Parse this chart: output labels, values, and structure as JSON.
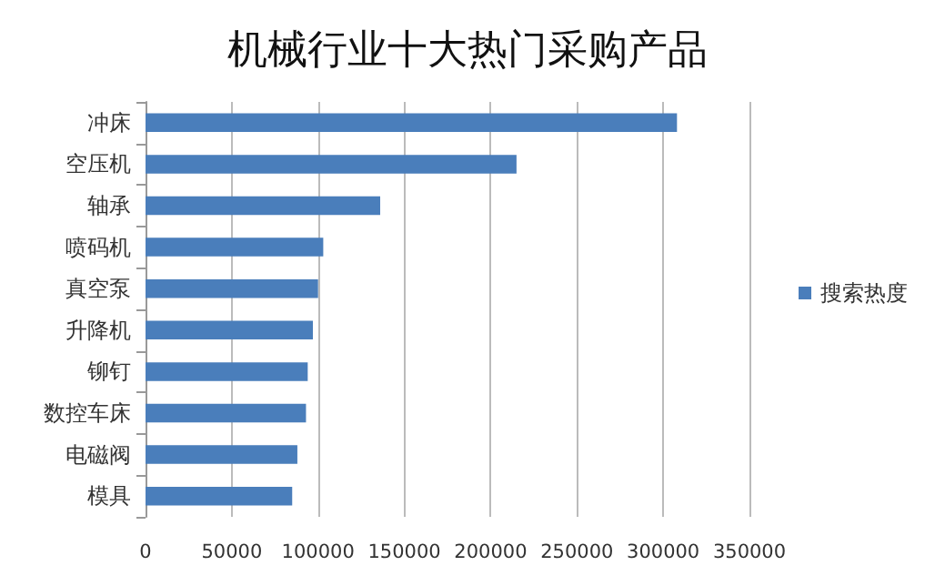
{
  "chart_data": {
    "type": "bar",
    "orientation": "horizontal",
    "title": "机械行业十大热门采购产品",
    "categories": [
      "冲床",
      "空压机",
      "轴承",
      "喷码机",
      "真空泵",
      "升降机",
      "铆钉",
      "数控车床",
      "电磁阀",
      "模具"
    ],
    "series": [
      {
        "name": "搜索热度",
        "color": "#4a7ebb",
        "values": [
          308000,
          215000,
          136000,
          103000,
          100000,
          97000,
          94000,
          93000,
          88000,
          85000
        ]
      }
    ],
    "xlim": [
      0,
      350000
    ],
    "xticks": [
      0,
      50000,
      100000,
      150000,
      200000,
      250000,
      300000,
      350000
    ],
    "grid": "x",
    "legend": "right"
  }
}
